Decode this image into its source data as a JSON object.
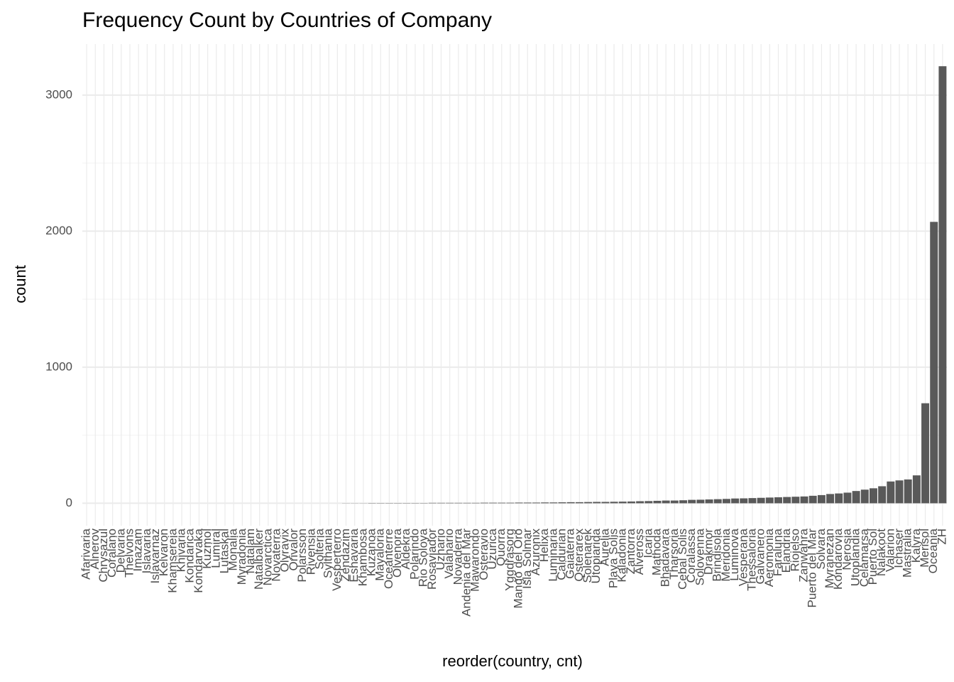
{
  "chart_data": {
    "type": "bar",
    "title": "Frequency Count by Countries of Company",
    "x_label": "reorder(country, cnt)",
    "y_label": "count",
    "color": "#595959",
    "grid": true,
    "ylim": [
      -165,
      3375
    ],
    "yticks": [
      0,
      1000,
      2000,
      3000
    ],
    "minor_yticks": [
      500,
      1500,
      2500
    ],
    "categories": [
      "Afarivaria",
      "Alnerov",
      "Chrysazul",
      "Coralano",
      "Delvaria",
      "Thelvons",
      "Imazam",
      "Islavaria",
      "Islavarnaz",
      "Kelvaron",
      "Khamsereia",
      "Khivaria",
      "Kondarica",
      "Kondarvaka",
      "Kuzmol",
      "Lumiral",
      "Lutaskal",
      "Monalia",
      "Myradonia",
      "Natalam",
      "Natalbalker",
      "Novarctica",
      "Novaterra",
      "Olyravix",
      "Orivalor",
      "Polarsson",
      "Rivensia",
      "Solteria",
      "Sylthania",
      "Vesperterro",
      "Zendazim",
      "Eshavaria",
      "Khambosa",
      "Kuzanoa",
      "Mayaloria",
      "Oceanterre",
      "Olvenora",
      "Aldekra",
      "Polarindo",
      "Rio Soloya",
      "Rosaviador",
      "Uzhario",
      "Valahario",
      "Novaderra",
      "Andenia del Mar",
      "Mawarondo",
      "Osteravio",
      "Uzurica",
      "Quorra",
      "Yggdrasorg",
      "Mango del Oro",
      "Isla Solmar",
      "Azuronix",
      "Helixa",
      "Luminaria",
      "Caldurian",
      "Gaiaterra",
      "Qsterarex",
      "Solenarek",
      "Utopiarida",
      "Aurelia",
      "Playa Solis",
      "Kaladonia",
      "Zantorra",
      "Alveross",
      "Icaria",
      "Mathoda",
      "Bhadavara",
      "Tharsoria",
      "Cebal Solis",
      "Coralassa",
      "Solovenna",
      "Drakmor",
      "Brindisola",
      "Meridonia",
      "Luminova",
      "Vesperana",
      "Thessaloria",
      "Galvanero",
      "Aeromonia",
      "Faraluna",
      "Elandria",
      "Riojelso",
      "Zanwahra",
      "Puerto del Mar",
      "Solvara",
      "Myranezan",
      "Kondarovia",
      "Nerosia",
      "Utoplandia",
      "Celamarsa",
      "Puerto Sol",
      "Nalakoot",
      "Valarion",
      "Ichaser",
      "Mastralia",
      "Kalyra",
      "Merisol",
      "Oceania",
      "ZH"
    ],
    "values": [
      0,
      0,
      0,
      0,
      0,
      0,
      0,
      0,
      0,
      0,
      0,
      0,
      0,
      0,
      0,
      0,
      0,
      0,
      0,
      0,
      0,
      0,
      0,
      0,
      0,
      0,
      0,
      0,
      0,
      0,
      1,
      1,
      1,
      2,
      2,
      2,
      2,
      2,
      2,
      2,
      3,
      3,
      3,
      3,
      3,
      3,
      4,
      4,
      4,
      4,
      5,
      5,
      5,
      6,
      6,
      7,
      8,
      8,
      9,
      10,
      10,
      11,
      12,
      13,
      15,
      16,
      18,
      20,
      20,
      22,
      25,
      26,
      28,
      30,
      32,
      35,
      36,
      38,
      40,
      42,
      44,
      46,
      48,
      50,
      55,
      60,
      68,
      72,
      78,
      90,
      100,
      110,
      125,
      160,
      168,
      175,
      205,
      735,
      2068,
      3212
    ]
  }
}
